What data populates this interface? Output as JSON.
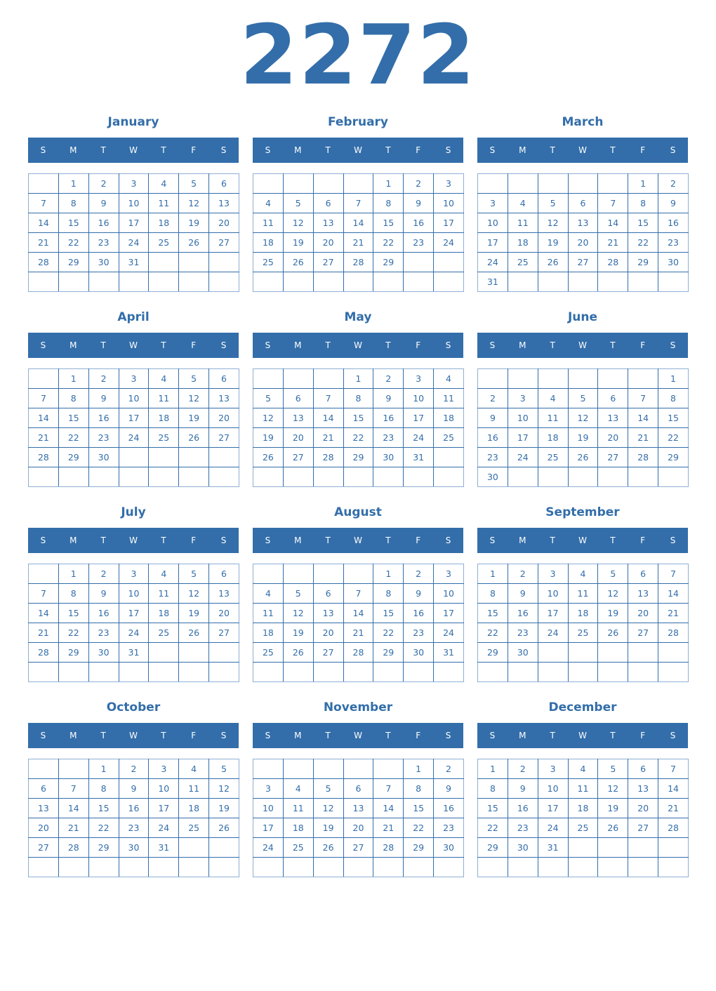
{
  "year": "2272",
  "accent_color": "#336eaa",
  "weekdays": [
    "S",
    "M",
    "T",
    "W",
    "T",
    "F",
    "S"
  ],
  "months": [
    {
      "name": "January",
      "weeks": [
        [
          null,
          1,
          2,
          3,
          4,
          5,
          6
        ],
        [
          7,
          8,
          9,
          10,
          11,
          12,
          13
        ],
        [
          14,
          15,
          16,
          17,
          18,
          19,
          20
        ],
        [
          21,
          22,
          23,
          24,
          25,
          26,
          27
        ],
        [
          28,
          29,
          30,
          31,
          null,
          null,
          null
        ],
        [
          null,
          null,
          null,
          null,
          null,
          null,
          null
        ]
      ]
    },
    {
      "name": "February",
      "weeks": [
        [
          null,
          null,
          null,
          null,
          1,
          2,
          3
        ],
        [
          4,
          5,
          6,
          7,
          8,
          9,
          10
        ],
        [
          11,
          12,
          13,
          14,
          15,
          16,
          17
        ],
        [
          18,
          19,
          20,
          21,
          22,
          23,
          24
        ],
        [
          25,
          26,
          27,
          28,
          29,
          null,
          null
        ],
        [
          null,
          null,
          null,
          null,
          null,
          null,
          null
        ]
      ]
    },
    {
      "name": "March",
      "weeks": [
        [
          null,
          null,
          null,
          null,
          null,
          1,
          2
        ],
        [
          3,
          4,
          5,
          6,
          7,
          8,
          9
        ],
        [
          10,
          11,
          12,
          13,
          14,
          15,
          16
        ],
        [
          17,
          18,
          19,
          20,
          21,
          22,
          23
        ],
        [
          24,
          25,
          26,
          27,
          28,
          29,
          30
        ],
        [
          31,
          null,
          null,
          null,
          null,
          null,
          null
        ]
      ]
    },
    {
      "name": "April",
      "weeks": [
        [
          null,
          1,
          2,
          3,
          4,
          5,
          6
        ],
        [
          7,
          8,
          9,
          10,
          11,
          12,
          13
        ],
        [
          14,
          15,
          16,
          17,
          18,
          19,
          20
        ],
        [
          21,
          22,
          23,
          24,
          25,
          26,
          27
        ],
        [
          28,
          29,
          30,
          null,
          null,
          null,
          null
        ],
        [
          null,
          null,
          null,
          null,
          null,
          null,
          null
        ]
      ]
    },
    {
      "name": "May",
      "weeks": [
        [
          null,
          null,
          null,
          1,
          2,
          3,
          4
        ],
        [
          5,
          6,
          7,
          8,
          9,
          10,
          11
        ],
        [
          12,
          13,
          14,
          15,
          16,
          17,
          18
        ],
        [
          19,
          20,
          21,
          22,
          23,
          24,
          25
        ],
        [
          26,
          27,
          28,
          29,
          30,
          31,
          null
        ],
        [
          null,
          null,
          null,
          null,
          null,
          null,
          null
        ]
      ]
    },
    {
      "name": "June",
      "weeks": [
        [
          null,
          null,
          null,
          null,
          null,
          null,
          1
        ],
        [
          2,
          3,
          4,
          5,
          6,
          7,
          8
        ],
        [
          9,
          10,
          11,
          12,
          13,
          14,
          15
        ],
        [
          16,
          17,
          18,
          19,
          20,
          21,
          22
        ],
        [
          23,
          24,
          25,
          26,
          27,
          28,
          29
        ],
        [
          30,
          null,
          null,
          null,
          null,
          null,
          null
        ]
      ]
    },
    {
      "name": "July",
      "weeks": [
        [
          null,
          1,
          2,
          3,
          4,
          5,
          6
        ],
        [
          7,
          8,
          9,
          10,
          11,
          12,
          13
        ],
        [
          14,
          15,
          16,
          17,
          18,
          19,
          20
        ],
        [
          21,
          22,
          23,
          24,
          25,
          26,
          27
        ],
        [
          28,
          29,
          30,
          31,
          null,
          null,
          null
        ],
        [
          null,
          null,
          null,
          null,
          null,
          null,
          null
        ]
      ]
    },
    {
      "name": "August",
      "weeks": [
        [
          null,
          null,
          null,
          null,
          1,
          2,
          3
        ],
        [
          4,
          5,
          6,
          7,
          8,
          9,
          10
        ],
        [
          11,
          12,
          13,
          14,
          15,
          16,
          17
        ],
        [
          18,
          19,
          20,
          21,
          22,
          23,
          24
        ],
        [
          25,
          26,
          27,
          28,
          29,
          30,
          31
        ],
        [
          null,
          null,
          null,
          null,
          null,
          null,
          null
        ]
      ]
    },
    {
      "name": "September",
      "weeks": [
        [
          1,
          2,
          3,
          4,
          5,
          6,
          7
        ],
        [
          8,
          9,
          10,
          11,
          12,
          13,
          14
        ],
        [
          15,
          16,
          17,
          18,
          19,
          20,
          21
        ],
        [
          22,
          23,
          24,
          25,
          26,
          27,
          28
        ],
        [
          29,
          30,
          null,
          null,
          null,
          null,
          null
        ],
        [
          null,
          null,
          null,
          null,
          null,
          null,
          null
        ]
      ]
    },
    {
      "name": "October",
      "weeks": [
        [
          null,
          null,
          1,
          2,
          3,
          4,
          5
        ],
        [
          6,
          7,
          8,
          9,
          10,
          11,
          12
        ],
        [
          13,
          14,
          15,
          16,
          17,
          18,
          19
        ],
        [
          20,
          21,
          22,
          23,
          24,
          25,
          26
        ],
        [
          27,
          28,
          29,
          30,
          31,
          null,
          null
        ],
        [
          null,
          null,
          null,
          null,
          null,
          null,
          null
        ]
      ]
    },
    {
      "name": "November",
      "weeks": [
        [
          null,
          null,
          null,
          null,
          null,
          1,
          2
        ],
        [
          3,
          4,
          5,
          6,
          7,
          8,
          9
        ],
        [
          10,
          11,
          12,
          13,
          14,
          15,
          16
        ],
        [
          17,
          18,
          19,
          20,
          21,
          22,
          23
        ],
        [
          24,
          25,
          26,
          27,
          28,
          29,
          30
        ],
        [
          null,
          null,
          null,
          null,
          null,
          null,
          null
        ]
      ]
    },
    {
      "name": "December",
      "weeks": [
        [
          1,
          2,
          3,
          4,
          5,
          6,
          7
        ],
        [
          8,
          9,
          10,
          11,
          12,
          13,
          14
        ],
        [
          15,
          16,
          17,
          18,
          19,
          20,
          21
        ],
        [
          22,
          23,
          24,
          25,
          26,
          27,
          28
        ],
        [
          29,
          30,
          31,
          null,
          null,
          null,
          null
        ],
        [
          null,
          null,
          null,
          null,
          null,
          null,
          null
        ]
      ]
    }
  ]
}
